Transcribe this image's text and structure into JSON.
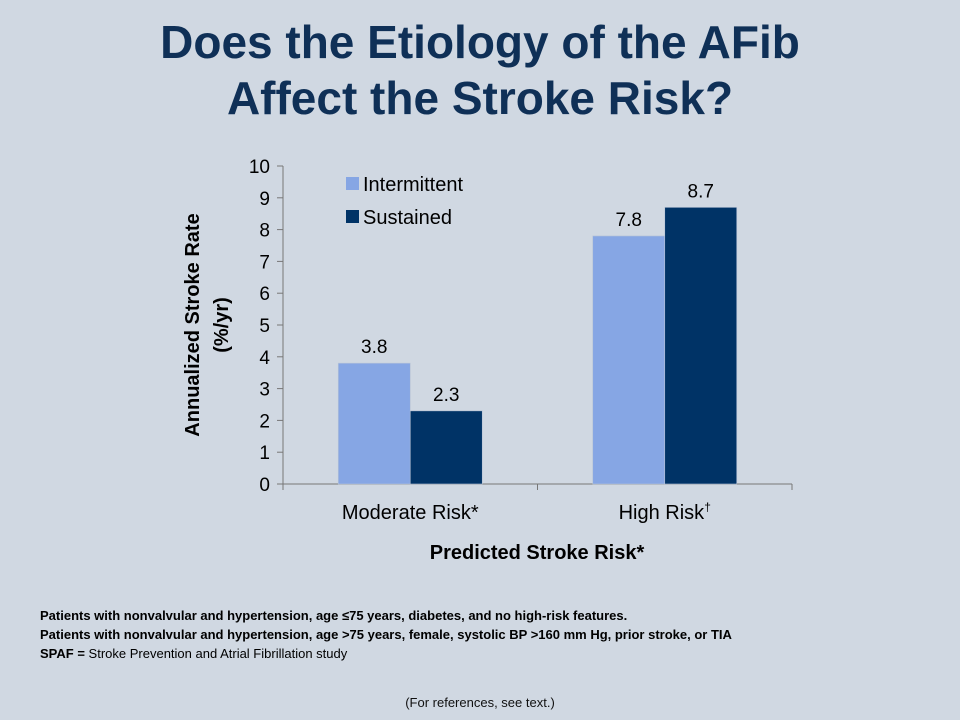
{
  "slide": {
    "title_line1": "Does the Etiology of the AFib",
    "title_line2": "Affect the Stroke Risk?",
    "footnotes": [
      "Patients with nonvalvular and hypertension, age ≤75 years, diabetes, and no high-risk features.",
      "Patients with nonvalvular and hypertension, age >75 years, female, systolic BP >160 mm Hg, prior stroke, or TIA"
    ],
    "spaf_abbrev": "SPAF =",
    "spaf_text": "Stroke Prevention and Atrial Fibrillation study",
    "references": "(For references, see text.)"
  },
  "chart_data": {
    "type": "bar",
    "categories": [
      "Moderate Risk*",
      "High Risk"
    ],
    "category_superscripts": [
      "",
      "†"
    ],
    "series": [
      {
        "name": "Intermittent",
        "values": [
          3.8,
          7.8
        ],
        "color": "#86a6e4"
      },
      {
        "name": "Sustained",
        "values": [
          2.3,
          8.7
        ],
        "color": "#003366"
      }
    ],
    "data_labels": [
      [
        "3.8",
        "7.8"
      ],
      [
        "2.3",
        "8.7"
      ]
    ],
    "xlabel": "Predicted Stroke Risk*",
    "ylabel_line1": "Annualized Stroke Rate",
    "ylabel_line2": "(%/yr)",
    "ylim": [
      0,
      10
    ],
    "yticks": [
      0,
      1,
      2,
      3,
      4,
      5,
      6,
      7,
      8,
      9,
      10
    ],
    "grid": false,
    "legend_position": "top-left"
  }
}
